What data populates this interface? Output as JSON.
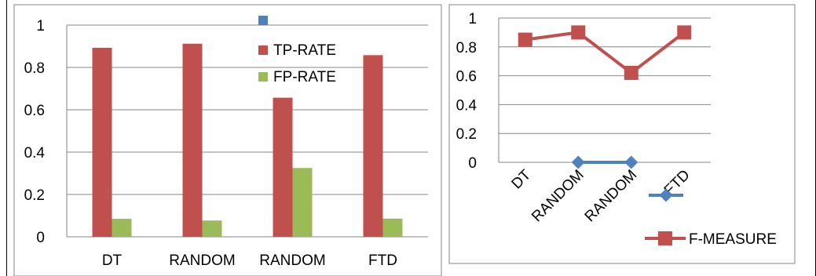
{
  "chart_data": [
    {
      "type": "bar",
      "categories": [
        "DT",
        "RANDOM",
        "RANDOM",
        "FTD"
      ],
      "series": [
        {
          "name": "",
          "values": [
            0,
            0,
            0,
            0
          ],
          "color": "#4f81bd"
        },
        {
          "name": "TP-RATE",
          "values": [
            0.893,
            0.912,
            0.657,
            0.858
          ],
          "color": "#c0504d"
        },
        {
          "name": "FP-RATE",
          "values": [
            0.085,
            0.077,
            0.325,
            0.086
          ],
          "color": "#9bbb59"
        }
      ],
      "yticks": [
        "0",
        "0.2",
        "0.4",
        "0.6",
        "0.8",
        "1"
      ],
      "ylim": [
        0,
        1
      ],
      "grid": true,
      "legend": "top-right-inside"
    },
    {
      "type": "line",
      "categories": [
        "DT",
        "RANDOM",
        "RANDOM",
        "FTD"
      ],
      "series": [
        {
          "name": "",
          "values": [
            null,
            0,
            0,
            null
          ],
          "color": "#4f81bd",
          "marker": "diamond"
        },
        {
          "name": "F-MEASURE",
          "values": [
            0.85,
            0.9,
            0.62,
            0.9
          ],
          "color": "#c0504d",
          "marker": "square"
        }
      ],
      "yticks": [
        "0",
        "0.2",
        "0.4",
        "0.6",
        "0.8",
        "1"
      ],
      "ylim": [
        0,
        1
      ],
      "grid": true,
      "legend": "right"
    }
  ]
}
